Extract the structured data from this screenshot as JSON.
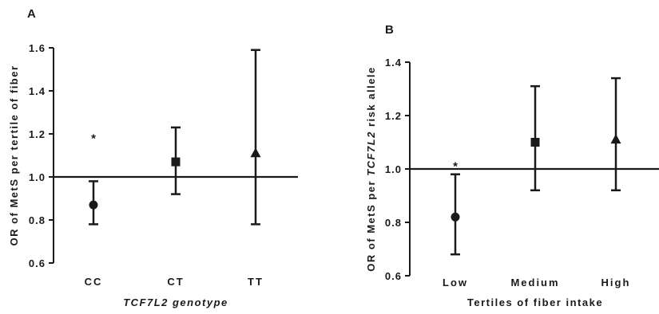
{
  "chart_data": [
    {
      "type": "scatter",
      "panel_label": "A",
      "categories": [
        "CC",
        "CT",
        "TT"
      ],
      "xlabel_parts": [
        {
          "text": "TCF7L2",
          "italic": true
        },
        {
          "text": " genotype",
          "italic": true
        }
      ],
      "ylabel_parts": [
        {
          "text": "OR of MetS per tertile of fiber",
          "italic": false
        }
      ],
      "ylim": [
        0.6,
        1.6
      ],
      "yticks": [
        0.6,
        0.8,
        1.0,
        1.2,
        1.4,
        1.6
      ],
      "ytick_labels": [
        "0.6",
        "0.8",
        "1.0",
        "1.2",
        "1.4",
        "1.6"
      ],
      "reference_line": 1.0,
      "grid": false,
      "points": [
        {
          "category": "CC",
          "y": 0.87,
          "low": 0.78,
          "high": 0.98,
          "marker": "circle"
        },
        {
          "category": "CT",
          "y": 1.07,
          "low": 0.92,
          "high": 1.23,
          "marker": "square"
        },
        {
          "category": "TT",
          "y": 1.11,
          "low": 0.78,
          "high": 1.59,
          "marker": "triangle"
        }
      ],
      "annotations": [
        {
          "text": "*",
          "category": "CC",
          "y": 1.19
        }
      ]
    },
    {
      "type": "scatter",
      "panel_label": "B",
      "categories": [
        "Low",
        "Medium",
        "High"
      ],
      "xlabel_parts": [
        {
          "text": "Tertiles of fiber intake",
          "italic": false
        }
      ],
      "ylabel_parts": [
        {
          "text": "OR of MetS per ",
          "italic": false
        },
        {
          "text": "TCF7L2",
          "italic": true
        },
        {
          "text": " risk allele",
          "italic": false
        }
      ],
      "ylim": [
        0.6,
        1.4
      ],
      "yticks": [
        0.6,
        0.8,
        1.0,
        1.2,
        1.4
      ],
      "ytick_labels": [
        "0.6",
        "0.8",
        "1.0",
        "1.2",
        "1.4"
      ],
      "reference_line": 1.0,
      "grid": false,
      "points": [
        {
          "category": "Low",
          "y": 0.82,
          "low": 0.68,
          "high": 0.98,
          "marker": "circle"
        },
        {
          "category": "Medium",
          "y": 1.1,
          "low": 0.92,
          "high": 1.31,
          "marker": "square"
        },
        {
          "category": "High",
          "y": 1.11,
          "low": 0.92,
          "high": 1.34,
          "marker": "triangle"
        }
      ],
      "annotations": [
        {
          "text": "*",
          "category": "Low",
          "y": 1.02
        }
      ]
    }
  ]
}
